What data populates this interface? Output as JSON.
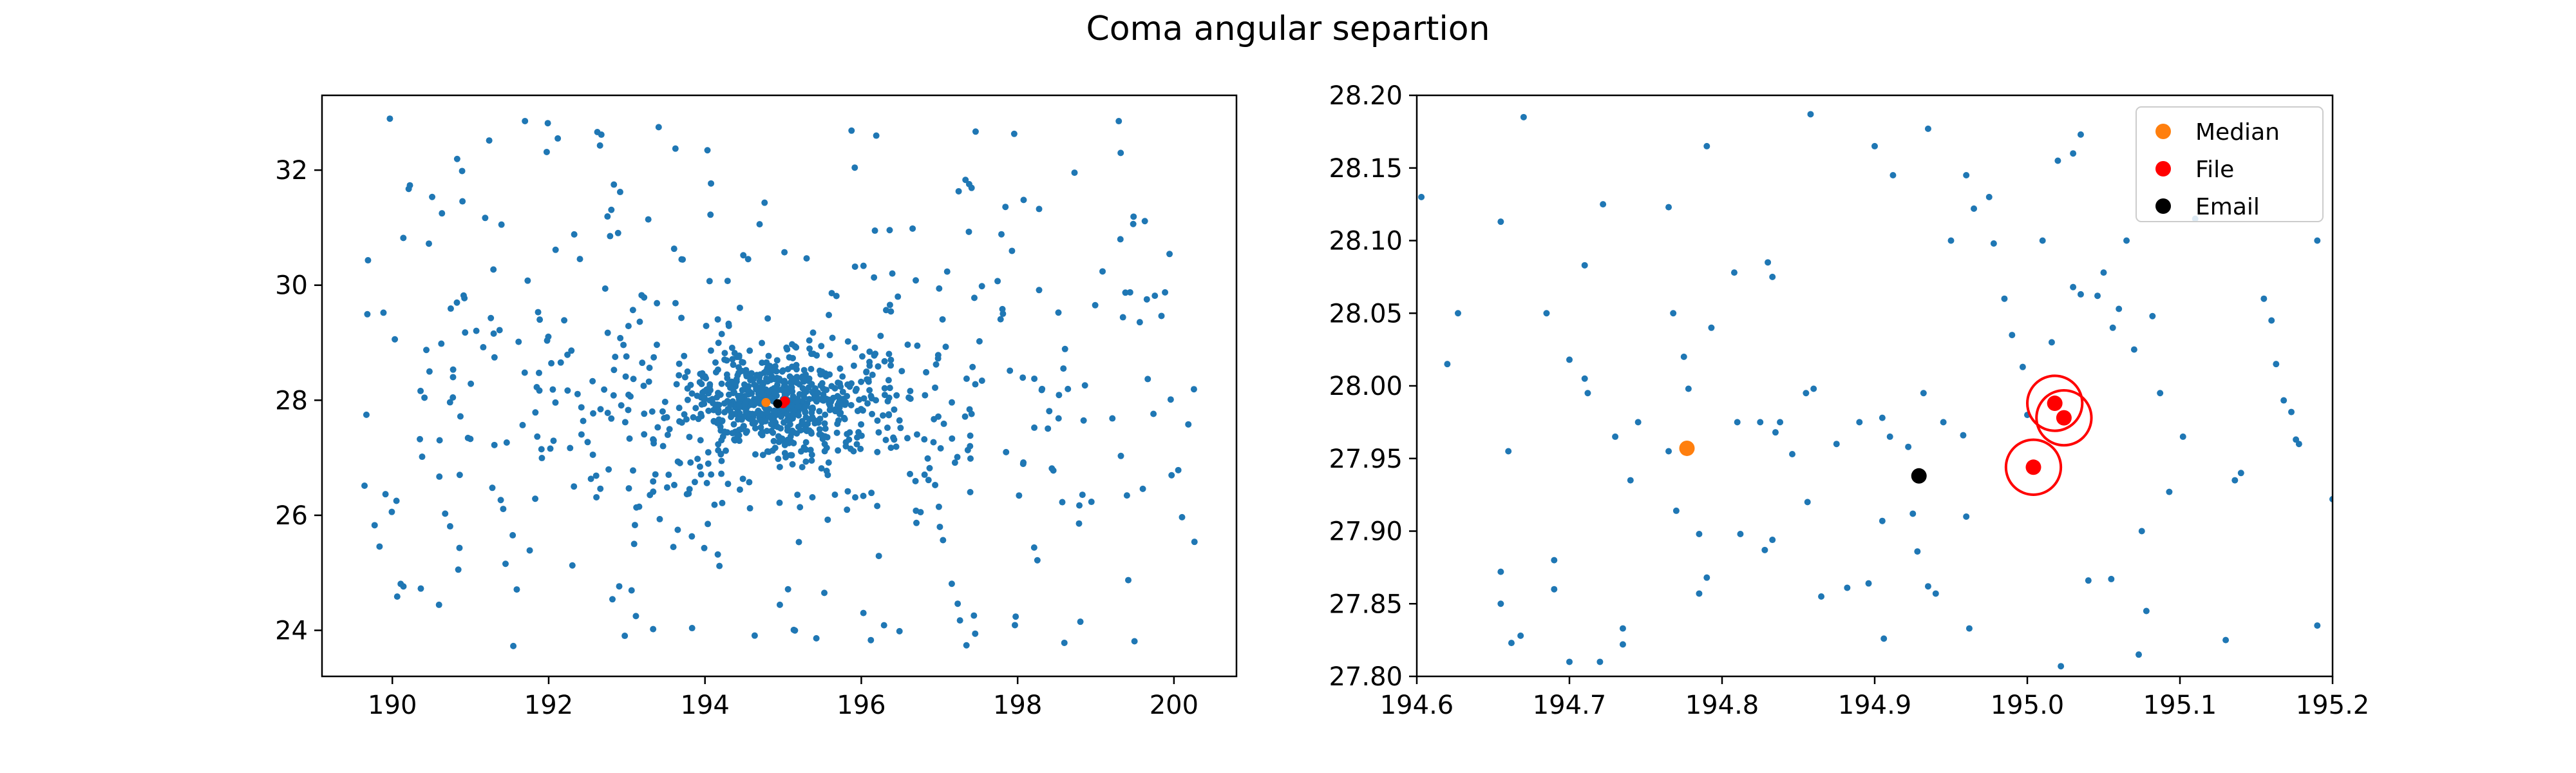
{
  "figure": {
    "title": "Coma angular separtion"
  },
  "colors": {
    "points": "#1f77b4",
    "median": "#ff7f0e",
    "file": "#ff0000",
    "email": "#000000"
  },
  "chart_data": [
    {
      "type": "scatter",
      "title": "",
      "xlabel": "",
      "ylabel": "",
      "xlim": [
        189.1,
        200.8
      ],
      "ylim": [
        23.2,
        33.3
      ],
      "x_ticks": [
        190,
        192,
        194,
        196,
        198,
        200
      ],
      "y_ticks": [
        24,
        26,
        28,
        30,
        32
      ],
      "x_tick_labels": [
        "190",
        "192",
        "194",
        "196",
        "198",
        "200"
      ],
      "y_tick_labels": [
        "24",
        "26",
        "28",
        "30",
        "32"
      ],
      "background_points": {
        "note": "approximately 1100 galaxy positions, dense core near (194.9, 27.95), broad distribution RA 189.6-200.3, Dec 23.6-32.9",
        "generator": {
          "n": 1100,
          "core_center": [
            194.9,
            27.95
          ]
        }
      },
      "series": [
        {
          "name": "Median",
          "color": "#ff7f0e",
          "points": [
            [
              194.78,
              27.96
            ]
          ]
        },
        {
          "name": "File",
          "color": "#ff0000",
          "points": [
            [
              195.0,
              27.94
            ],
            [
              195.02,
              27.99
            ],
            [
              195.03,
              27.98
            ]
          ]
        },
        {
          "name": "Email",
          "color": "#000000",
          "points": [
            [
              194.93,
              27.94
            ]
          ]
        }
      ]
    },
    {
      "type": "scatter",
      "title": "",
      "xlabel": "",
      "ylabel": "",
      "xlim": [
        194.6,
        195.2
      ],
      "ylim": [
        27.8,
        28.2
      ],
      "x_ticks": [
        194.6,
        194.7,
        194.8,
        194.9,
        195.0,
        195.1,
        195.2
      ],
      "y_ticks": [
        27.8,
        27.85,
        27.9,
        27.95,
        28.0,
        28.05,
        28.1,
        28.15,
        28.2
      ],
      "x_tick_labels": [
        "194.6",
        "194.7",
        "194.8",
        "194.9",
        "195.0",
        "195.1",
        "195.2"
      ],
      "y_tick_labels": [
        "27.80",
        "27.85",
        "27.90",
        "27.95",
        "28.00",
        "28.05",
        "28.10",
        "28.15",
        "28.20"
      ],
      "grid": false,
      "legend": {
        "placement": "top-right",
        "entries": [
          "Median",
          "File",
          "Email"
        ]
      },
      "background_points": [
        [
          194.603,
          28.13
        ],
        [
          194.627,
          28.05
        ],
        [
          194.62,
          28.015
        ],
        [
          194.67,
          28.185
        ],
        [
          194.655,
          28.113
        ],
        [
          194.66,
          27.955
        ],
        [
          194.655,
          27.872
        ],
        [
          194.655,
          27.85
        ],
        [
          194.662,
          27.823
        ],
        [
          194.668,
          27.828
        ],
        [
          194.685,
          28.05
        ],
        [
          194.7,
          28.018
        ],
        [
          194.71,
          28.083
        ],
        [
          194.722,
          28.125
        ],
        [
          194.71,
          28.005
        ],
        [
          194.712,
          27.995
        ],
        [
          194.73,
          27.965
        ],
        [
          194.745,
          27.975
        ],
        [
          194.74,
          27.935
        ],
        [
          194.735,
          27.822
        ],
        [
          194.735,
          27.833
        ],
        [
          194.69,
          27.88
        ],
        [
          194.69,
          27.86
        ],
        [
          194.7,
          27.81
        ],
        [
          194.72,
          27.81
        ],
        [
          194.765,
          28.123
        ],
        [
          194.768,
          28.05
        ],
        [
          194.775,
          28.02
        ],
        [
          194.778,
          27.998
        ],
        [
          194.765,
          27.955
        ],
        [
          194.77,
          27.914
        ],
        [
          194.785,
          27.898
        ],
        [
          194.785,
          27.857
        ],
        [
          194.79,
          27.868
        ],
        [
          194.79,
          28.165
        ],
        [
          194.793,
          28.04
        ],
        [
          194.808,
          28.078
        ],
        [
          194.81,
          27.975
        ],
        [
          194.812,
          27.898
        ],
        [
          194.825,
          27.975
        ],
        [
          194.83,
          28.085
        ],
        [
          194.833,
          28.075
        ],
        [
          194.838,
          27.975
        ],
        [
          194.835,
          27.968
        ],
        [
          194.828,
          27.887
        ],
        [
          194.833,
          27.894
        ],
        [
          194.846,
          27.953
        ],
        [
          194.855,
          27.995
        ],
        [
          194.86,
          27.998
        ],
        [
          194.858,
          28.187
        ],
        [
          194.856,
          27.92
        ],
        [
          194.865,
          27.855
        ],
        [
          194.875,
          27.96
        ],
        [
          194.89,
          27.975
        ],
        [
          194.882,
          27.861
        ],
        [
          194.896,
          27.864
        ],
        [
          194.9,
          28.165
        ],
        [
          194.905,
          27.978
        ],
        [
          194.91,
          27.965
        ],
        [
          194.905,
          27.907
        ],
        [
          194.906,
          27.826
        ],
        [
          194.912,
          28.145
        ],
        [
          194.922,
          27.958
        ],
        [
          194.925,
          27.912
        ],
        [
          194.928,
          27.886
        ],
        [
          194.932,
          27.995
        ],
        [
          194.935,
          28.177
        ],
        [
          194.935,
          27.862
        ],
        [
          194.94,
          27.857
        ],
        [
          194.945,
          27.975
        ],
        [
          194.95,
          28.1
        ],
        [
          194.96,
          28.145
        ],
        [
          194.965,
          28.122
        ],
        [
          194.958,
          27.966
        ],
        [
          194.96,
          27.91
        ],
        [
          194.962,
          27.833
        ],
        [
          194.975,
          28.13
        ],
        [
          194.978,
          28.098
        ],
        [
          194.985,
          28.06
        ],
        [
          194.99,
          28.035
        ],
        [
          194.997,
          28.013
        ],
        [
          195.0,
          27.98
        ],
        [
          195.01,
          28.1
        ],
        [
          195.016,
          28.03
        ],
        [
          195.02,
          28.155
        ],
        [
          195.03,
          28.16
        ],
        [
          195.035,
          28.173
        ],
        [
          195.03,
          28.068
        ],
        [
          195.035,
          28.063
        ],
        [
          195.046,
          28.062
        ],
        [
          195.05,
          28.078
        ],
        [
          195.056,
          28.04
        ],
        [
          195.06,
          28.053
        ],
        [
          195.04,
          27.866
        ],
        [
          195.055,
          27.867
        ],
        [
          195.065,
          28.1
        ],
        [
          195.07,
          28.025
        ],
        [
          195.075,
          27.9
        ],
        [
          195.078,
          27.845
        ],
        [
          195.082,
          28.048
        ],
        [
          195.087,
          27.995
        ],
        [
          195.093,
          27.927
        ],
        [
          195.11,
          28.115
        ],
        [
          195.13,
          27.825
        ],
        [
          195.136,
          27.935
        ],
        [
          195.14,
          27.94
        ],
        [
          195.155,
          28.06
        ],
        [
          195.16,
          28.045
        ],
        [
          195.163,
          28.015
        ],
        [
          195.168,
          27.99
        ],
        [
          195.178,
          27.96
        ],
        [
          195.173,
          27.982
        ],
        [
          195.176,
          27.963
        ],
        [
          195.19,
          28.1
        ],
        [
          195.19,
          27.835
        ],
        [
          195.2,
          27.922
        ],
        [
          195.022,
          27.807
        ],
        [
          195.073,
          27.815
        ],
        [
          195.102,
          27.965
        ]
      ],
      "series": [
        {
          "name": "Median",
          "color": "#ff7f0e",
          "points": [
            [
              194.777,
              27.957
            ]
          ]
        },
        {
          "name": "File",
          "color": "#ff0000",
          "points": [
            [
              195.004,
              27.944
            ],
            [
              195.018,
              27.988
            ],
            [
              195.024,
              27.978
            ]
          ],
          "circle_radius": 0.018
        },
        {
          "name": "Email",
          "color": "#000000",
          "points": [
            [
              194.929,
              27.938
            ]
          ]
        }
      ]
    }
  ]
}
